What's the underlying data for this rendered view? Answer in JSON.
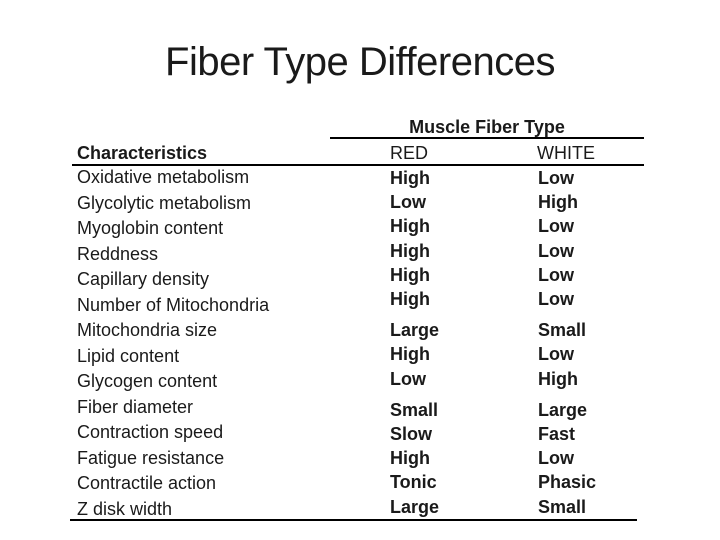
{
  "title": "Fiber Type Differences",
  "colors": {
    "background": "#ffffff",
    "text": "#1a1a1a",
    "line": "#000000"
  },
  "table": {
    "group_header": "Muscle Fiber Type",
    "columns": {
      "characteristics": "Characteristics",
      "red": "RED",
      "white": "WHITE"
    },
    "row_groups": [
      {
        "rows": [
          {
            "characteristic": "Oxidative metabolism",
            "red": "High",
            "white": "Low"
          },
          {
            "characteristic": "Glycolytic metabolism",
            "red": "Low",
            "white": "High"
          },
          {
            "characteristic": "Myoglobin content",
            "red": "High",
            "white": "Low"
          },
          {
            "characteristic": "Reddness",
            "red": "High",
            "white": "Low"
          },
          {
            "characteristic": "Capillary density",
            "red": "High",
            "white": "Low"
          },
          {
            "characteristic": "Number of Mitochondria",
            "red": "High",
            "white": "Low"
          }
        ]
      },
      {
        "rows": [
          {
            "characteristic": "Mitochondria size",
            "red": "Large",
            "white": "Small"
          },
          {
            "characteristic": "Lipid content",
            "red": "High",
            "white": "Low"
          },
          {
            "characteristic": "Glycogen content",
            "red": "Low",
            "white": "High"
          }
        ]
      },
      {
        "rows": [
          {
            "characteristic": "Fiber diameter",
            "red": "Small",
            "white": "Large"
          },
          {
            "characteristic": "Contraction speed",
            "red": "Slow",
            "white": "Fast"
          },
          {
            "characteristic": "Fatigue resistance",
            "red": "High",
            "white": "Low"
          },
          {
            "characteristic": "Contractile action",
            "red": "Tonic",
            "white": "Phasic"
          },
          {
            "characteristic": "Z disk width",
            "red": "Large",
            "white": "Small"
          }
        ]
      }
    ]
  }
}
